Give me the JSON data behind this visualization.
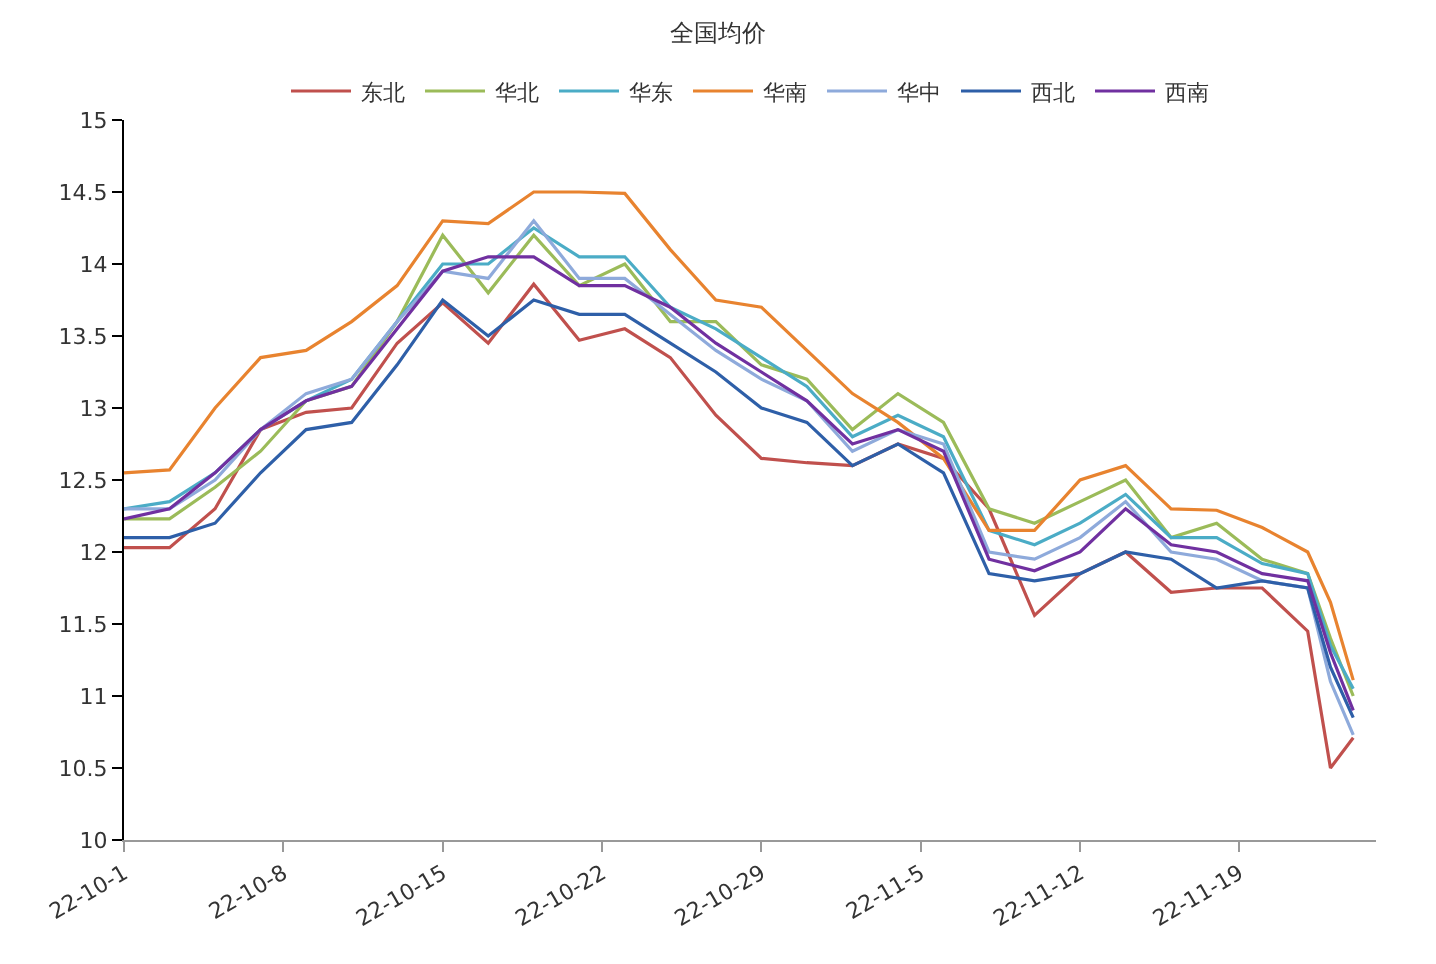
{
  "chart_data": {
    "type": "line",
    "title": "全国均价",
    "x": [
      "--10-01",
      "--10-03",
      "--10-05",
      "--10-07",
      "--10-09",
      "--10-11",
      "--10-13",
      "--10-15",
      "--10-17",
      "--10-19",
      "--10-21",
      "--10-23",
      "--10-25",
      "--10-27",
      "--10-29",
      "--10-31",
      "--11-02",
      "--11-04",
      "--11-06",
      "--11-08",
      "--11-10",
      "--11-12",
      "--11-14",
      "--11-16",
      "--11-18",
      "--11-20",
      "--11-22",
      "--11-23",
      "--11-24"
    ],
    "series": [
      {
        "name": "东北",
        "color": "#c0504d",
        "values": [
          12.03,
          12.03,
          12.3,
          12.85,
          12.97,
          13.0,
          13.45,
          13.73,
          13.45,
          13.86,
          13.47,
          13.55,
          13.35,
          12.95,
          12.65,
          12.62,
          12.6,
          12.75,
          12.65,
          12.3,
          11.56,
          11.85,
          12.0,
          11.72,
          11.75,
          11.75,
          11.45,
          10.5,
          10.71
        ]
      },
      {
        "name": "华北",
        "color": "#9bbb59",
        "values": [
          12.23,
          12.23,
          12.45,
          12.7,
          13.05,
          13.15,
          13.6,
          14.2,
          13.8,
          14.2,
          13.85,
          14.0,
          13.6,
          13.6,
          13.3,
          13.2,
          12.85,
          13.1,
          12.9,
          12.3,
          12.2,
          12.35,
          12.5,
          12.1,
          12.2,
          11.95,
          11.85,
          11.4,
          11.0
        ]
      },
      {
        "name": "华东",
        "color": "#4bacc6",
        "values": [
          12.3,
          12.35,
          12.55,
          12.85,
          13.05,
          13.2,
          13.6,
          14.0,
          14.0,
          14.25,
          14.05,
          14.05,
          13.7,
          13.55,
          13.35,
          13.15,
          12.8,
          12.95,
          12.8,
          12.15,
          12.05,
          12.2,
          12.4,
          12.1,
          12.1,
          11.92,
          11.85,
          11.35,
          11.05
        ]
      },
      {
        "name": "华南",
        "color": "#e8832f",
        "values": [
          12.55,
          12.57,
          13.0,
          13.35,
          13.4,
          13.6,
          13.85,
          14.3,
          14.28,
          14.5,
          14.5,
          14.49,
          14.1,
          13.75,
          13.7,
          13.4,
          13.1,
          12.9,
          12.65,
          12.15,
          12.15,
          12.5,
          12.6,
          12.3,
          12.29,
          12.17,
          12.0,
          11.65,
          11.11
        ]
      },
      {
        "name": "华中",
        "color": "#8eaadb",
        "values": [
          12.3,
          12.3,
          12.5,
          12.85,
          13.1,
          13.2,
          13.6,
          13.95,
          13.9,
          14.3,
          13.9,
          13.9,
          13.65,
          13.4,
          13.2,
          13.05,
          12.7,
          12.85,
          12.75,
          12.0,
          11.95,
          12.1,
          12.35,
          12.0,
          11.95,
          11.8,
          11.75,
          11.1,
          10.73
        ]
      },
      {
        "name": "西北",
        "color": "#2e5fa8",
        "values": [
          12.1,
          12.1,
          12.2,
          12.55,
          12.85,
          12.9,
          13.3,
          13.75,
          13.5,
          13.75,
          13.65,
          13.65,
          13.45,
          13.25,
          13.0,
          12.9,
          12.6,
          12.75,
          12.55,
          11.85,
          11.8,
          11.85,
          12.0,
          11.95,
          11.75,
          11.8,
          11.75,
          11.2,
          10.85
        ]
      },
      {
        "name": "西南",
        "color": "#7030a0",
        "values": [
          12.23,
          12.3,
          12.55,
          12.85,
          13.05,
          13.15,
          13.55,
          13.95,
          14.05,
          14.05,
          13.85,
          13.85,
          13.7,
          13.45,
          13.25,
          13.05,
          12.75,
          12.85,
          12.7,
          11.95,
          11.87,
          12.0,
          12.3,
          12.05,
          12.0,
          11.85,
          11.8,
          11.3,
          10.9
        ]
      }
    ],
    "xlim": [
      "--10-01",
      "--11-25"
    ],
    "xticks": [
      {
        "value": "--10-01",
        "label": "22-10-1"
      },
      {
        "value": "--10-08",
        "label": "22-10-8"
      },
      {
        "value": "--10-15",
        "label": "22-10-15"
      },
      {
        "value": "--10-22",
        "label": "22-10-22"
      },
      {
        "value": "--10-29",
        "label": "22-10-29"
      },
      {
        "value": "--11-05",
        "label": "22-11-5"
      },
      {
        "value": "--11-12",
        "label": "22-11-12"
      },
      {
        "value": "--11-19",
        "label": "22-11-19"
      }
    ],
    "ylim": [
      10,
      15
    ],
    "yticks": [
      10,
      10.5,
      11,
      11.5,
      12,
      12.5,
      13,
      13.5,
      14,
      14.5,
      15
    ],
    "grid": false,
    "legend": "top",
    "marker": "none",
    "line_style": "solid"
  }
}
